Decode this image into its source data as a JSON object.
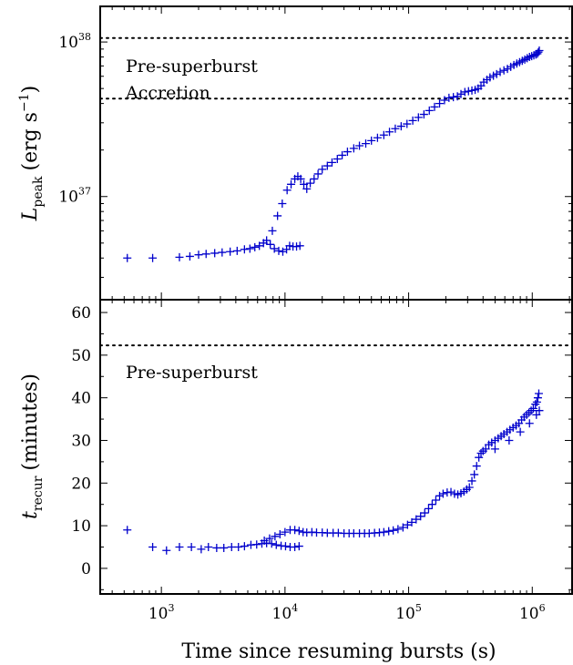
{
  "chart_data": [
    {
      "type": "scatter",
      "name": "peak-luminosity-panel",
      "ylabel_symbol": "L",
      "ylabel_subscript": "peak",
      "ylabel_units": "(erg s",
      "ylabel_units_exp": "−1",
      "ylabel_units_close": ")",
      "xscale": "log",
      "yscale": "log",
      "xlim": [
        320,
        2100000
      ],
      "ylim": [
        2150000000000000000000000000000000000,
        170000000000000000000000000000000000000
      ],
      "yticks": [
        {
          "value": 10000000000000000000000000000000000000,
          "base": "10",
          "exp": "37"
        },
        {
          "value": 100000000000000000000000000000000000000,
          "base": "10",
          "exp": "38"
        }
      ],
      "reference_lines": [
        {
          "label": "Pre-superburst",
          "y": 106000000000000000000000000000000000000
        },
        {
          "label": "Accretion",
          "y": 43000000000000000000000000000000000000
        }
      ],
      "marker": "+",
      "color": "#0000cc",
      "points": [
        [
          530,
          4e+36
        ],
        [
          850,
          4e+36
        ],
        [
          1400,
          4.05e+36
        ],
        [
          1700,
          4.1e+36
        ],
        [
          2000,
          4.2e+36
        ],
        [
          2300,
          4.25e+36
        ],
        [
          2700,
          4.3e+36
        ],
        [
          3100,
          4.35e+36
        ],
        [
          3600,
          4.4e+36
        ],
        [
          4100,
          4.45e+36
        ],
        [
          4700,
          4.55e+36
        ],
        [
          5200,
          4.6e+36
        ],
        [
          5700,
          4.7e+36
        ],
        [
          6200,
          4.8e+36
        ],
        [
          6700,
          5e+36
        ],
        [
          7100,
          5.2e+36
        ],
        [
          7600,
          4.9e+36
        ],
        [
          8200,
          4.6e+36
        ],
        [
          8900,
          4.45e+36
        ],
        [
          9600,
          4.4e+36
        ],
        [
          10300,
          4.55e+36
        ],
        [
          10900,
          4.8e+36
        ],
        [
          11600,
          4.75e+36
        ],
        [
          12400,
          4.75e+36
        ],
        [
          13200,
          4.8e+36
        ],
        [
          7900,
          6e+36
        ],
        [
          8700,
          7.5e+36
        ],
        [
          9500,
          9e+36
        ],
        [
          10400,
          1.1e+37
        ],
        [
          11200,
          1.2e+37
        ],
        [
          12000,
          1.3e+37
        ],
        [
          12700,
          1.35e+37
        ],
        [
          13400,
          1.3e+37
        ],
        [
          14200,
          1.2e+37
        ],
        [
          15000,
          1.12e+37
        ],
        [
          16000,
          1.22e+37
        ],
        [
          17200,
          1.3e+37
        ],
        [
          18500,
          1.4e+37
        ],
        [
          20000,
          1.5e+37
        ],
        [
          22000,
          1.58e+37
        ],
        [
          24000,
          1.66e+37
        ],
        [
          26500,
          1.75e+37
        ],
        [
          29000,
          1.85e+37
        ],
        [
          32000,
          1.95e+37
        ],
        [
          36000,
          2.05e+37
        ],
        [
          40000,
          2.13e+37
        ],
        [
          45000,
          2.2e+37
        ],
        [
          50000,
          2.3e+37
        ],
        [
          56000,
          2.4e+37
        ],
        [
          63000,
          2.5e+37
        ],
        [
          70000,
          2.62e+37
        ],
        [
          78000,
          2.75e+37
        ],
        [
          87000,
          2.85e+37
        ],
        [
          97000,
          2.95e+37
        ],
        [
          108000,
          3.1e+37
        ],
        [
          120000,
          3.25e+37
        ],
        [
          133000,
          3.4e+37
        ],
        [
          147000,
          3.6e+37
        ],
        [
          162000,
          3.8e+37
        ],
        [
          178000,
          4e+37
        ],
        [
          195000,
          4.2e+37
        ],
        [
          212000,
          4.35e+37
        ],
        [
          230000,
          4.4e+37
        ],
        [
          248000,
          4.45e+37
        ],
        [
          265000,
          4.6e+37
        ],
        [
          285000,
          4.75e+37
        ],
        [
          305000,
          4.8e+37
        ],
        [
          325000,
          4.85e+37
        ],
        [
          345000,
          4.9e+37
        ],
        [
          365000,
          5e+37
        ],
        [
          385000,
          5.2e+37
        ],
        [
          405000,
          5.5e+37
        ],
        [
          430000,
          5.7e+37
        ],
        [
          455000,
          5.9e+37
        ],
        [
          485000,
          6.05e+37
        ],
        [
          515000,
          6.2e+37
        ],
        [
          550000,
          6.4e+37
        ],
        [
          590000,
          6.55e+37
        ],
        [
          630000,
          6.7e+37
        ],
        [
          670000,
          6.9e+37
        ],
        [
          710000,
          7.1e+37
        ],
        [
          750000,
          7.25e+37
        ],
        [
          790000,
          7.4e+37
        ],
        [
          830000,
          7.55e+37
        ],
        [
          870000,
          7.7e+37
        ],
        [
          910000,
          7.85e+37
        ],
        [
          950000,
          8e+37
        ],
        [
          990000,
          8.1e+37
        ],
        [
          1030000,
          8.2e+37
        ],
        [
          1070000,
          8.3e+37
        ],
        [
          1100000,
          8.4e+37
        ],
        [
          1120000,
          8.6e+37
        ],
        [
          1140000,
          8.8e+37
        ]
      ]
    },
    {
      "type": "scatter",
      "name": "recurrence-time-panel",
      "ylabel_symbol": "t",
      "ylabel_subscript": "recur",
      "ylabel_units": "(minutes)",
      "xlabel": "Time since resuming bursts (s)",
      "xscale": "log",
      "yscale": "linear",
      "xlim": [
        320,
        2100000
      ],
      "ylim": [
        -6,
        63
      ],
      "yticks": [
        0,
        10,
        20,
        30,
        40,
        50,
        60
      ],
      "xticks": [
        {
          "value": 1000,
          "base": "10",
          "exp": "3"
        },
        {
          "value": 10000,
          "base": "10",
          "exp": "4"
        },
        {
          "value": 100000,
          "base": "10",
          "exp": "5"
        },
        {
          "value": 1000000,
          "base": "10",
          "exp": "6"
        }
      ],
      "reference_lines": [
        {
          "label": "Pre-superburst",
          "y": 52.3
        }
      ],
      "marker": "+",
      "color": "#0000cc",
      "points": [
        [
          530,
          9.0
        ],
        [
          850,
          5.0
        ],
        [
          1100,
          4.2
        ],
        [
          1400,
          5.0
        ],
        [
          1750,
          5.0
        ],
        [
          2100,
          4.5
        ],
        [
          2400,
          5.0
        ],
        [
          2800,
          4.8
        ],
        [
          3200,
          4.8
        ],
        [
          3700,
          5.0
        ],
        [
          4200,
          5.0
        ],
        [
          4700,
          5.2
        ],
        [
          5300,
          5.5
        ],
        [
          5900,
          5.6
        ],
        [
          6500,
          5.8
        ],
        [
          7100,
          5.9
        ],
        [
          7800,
          5.8
        ],
        [
          8500,
          5.5
        ],
        [
          9300,
          5.3
        ],
        [
          10100,
          5.2
        ],
        [
          11000,
          5.0
        ],
        [
          12000,
          5.0
        ],
        [
          13000,
          5.2
        ],
        [
          6800,
          6.5
        ],
        [
          7500,
          7.0
        ],
        [
          8300,
          7.5
        ],
        [
          9100,
          8.0
        ],
        [
          10000,
          8.5
        ],
        [
          11000,
          9.0
        ],
        [
          12000,
          9.0
        ],
        [
          13000,
          8.8
        ],
        [
          14000,
          8.5
        ],
        [
          15000,
          8.4
        ],
        [
          16500,
          8.5
        ],
        [
          18000,
          8.4
        ],
        [
          20000,
          8.4
        ],
        [
          22000,
          8.3
        ],
        [
          24500,
          8.3
        ],
        [
          27000,
          8.3
        ],
        [
          30000,
          8.2
        ],
        [
          33000,
          8.2
        ],
        [
          36000,
          8.2
        ],
        [
          40000,
          8.2
        ],
        [
          44000,
          8.2
        ],
        [
          48000,
          8.2
        ],
        [
          53000,
          8.3
        ],
        [
          58000,
          8.4
        ],
        [
          63000,
          8.5
        ],
        [
          69000,
          8.7
        ],
        [
          75000,
          8.9
        ],
        [
          82000,
          9.2
        ],
        [
          90000,
          9.6
        ],
        [
          98000,
          10.2
        ],
        [
          106000,
          10.8
        ],
        [
          115000,
          11.5
        ],
        [
          125000,
          12.2
        ],
        [
          135000,
          13.0
        ],
        [
          145000,
          14.0
        ],
        [
          155000,
          15.0
        ],
        [
          166000,
          16.0
        ],
        [
          178000,
          17.0
        ],
        [
          190000,
          17.5
        ],
        [
          205000,
          17.8
        ],
        [
          220000,
          17.9
        ],
        [
          235000,
          17.5
        ],
        [
          250000,
          17.3
        ],
        [
          265000,
          17.6
        ],
        [
          280000,
          18.0
        ],
        [
          295000,
          18.5
        ],
        [
          310000,
          19.0
        ],
        [
          325000,
          20.5
        ],
        [
          340000,
          22.0
        ],
        [
          355000,
          24.0
        ],
        [
          370000,
          26.0
        ],
        [
          385000,
          27.0
        ],
        [
          400000,
          27.5
        ],
        [
          420000,
          28.0
        ],
        [
          445000,
          29.0
        ],
        [
          470000,
          29.5
        ],
        [
          500000,
          30.0
        ],
        [
          530000,
          30.5
        ],
        [
          560000,
          31.0
        ],
        [
          590000,
          31.5
        ],
        [
          625000,
          32.0
        ],
        [
          660000,
          32.5
        ],
        [
          700000,
          33.0
        ],
        [
          740000,
          33.5
        ],
        [
          780000,
          34.0
        ],
        [
          820000,
          34.8
        ],
        [
          860000,
          35.5
        ],
        [
          900000,
          36.0
        ],
        [
          940000,
          36.5
        ],
        [
          980000,
          37.0
        ],
        [
          1020000,
          37.5
        ],
        [
          1060000,
          38.5
        ],
        [
          1090000,
          39.0
        ],
        [
          1110000,
          40.0
        ],
        [
          1130000,
          41.0
        ],
        [
          1140000,
          37.0
        ],
        [
          1080000,
          36.0
        ],
        [
          950000,
          34.0
        ],
        [
          800000,
          32.0
        ],
        [
          650000,
          30.0
        ],
        [
          500000,
          28.0
        ]
      ]
    }
  ]
}
